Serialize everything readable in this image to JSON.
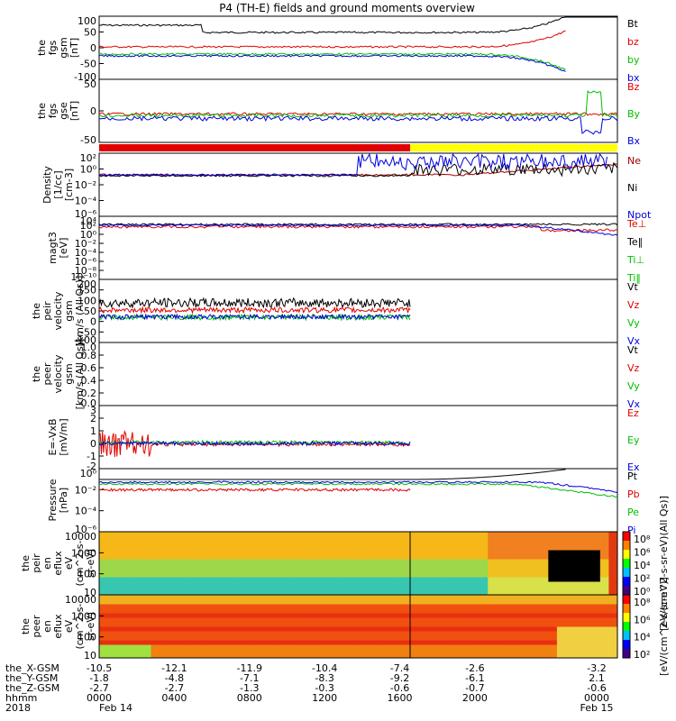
{
  "title": "P4 (TH-E) fields and ground moments overview",
  "colors": {
    "black": "#000000",
    "red": "#e00000",
    "green": "#00c000",
    "blue": "#0000dd",
    "yellow": "#ffff00",
    "darkred": "#a00000"
  },
  "chart_data": [
    {
      "type": "line",
      "panel": "fgs_gsm",
      "ylabel": [
        "the",
        "fgs",
        "gsm",
        "[nT]"
      ],
      "yticks": [
        "100",
        "50",
        "0",
        "-50",
        "-100"
      ],
      "ylim": [
        -100,
        100
      ],
      "series": [
        {
          "name": "Bt",
          "color": "black"
        },
        {
          "name": "bz",
          "color": "red"
        },
        {
          "name": "by",
          "color": "green"
        },
        {
          "name": "bx",
          "color": "blue"
        }
      ]
    },
    {
      "type": "line",
      "panel": "fgs_dsl",
      "ylabel": [
        "the",
        "fgs",
        "gse",
        "[nT]"
      ],
      "yticks": [
        "50",
        "0",
        "-50"
      ],
      "ylim": [
        -80,
        80
      ],
      "series": [
        {
          "name": "Bz",
          "color": "red"
        },
        {
          "name": "By",
          "color": "green"
        },
        {
          "name": "Bx",
          "color": "blue"
        }
      ]
    },
    {
      "type": "bar",
      "panel": "mode_bar",
      "segments": [
        {
          "from": 0,
          "to": 0.6,
          "color": "red"
        },
        {
          "from": 0.6,
          "to": 1,
          "color": "yellow"
        }
      ]
    },
    {
      "type": "line",
      "panel": "density",
      "ylabel": [
        "Density",
        "[1/cc]",
        "[cm-3]"
      ],
      "yticks": [
        "10²",
        "10⁰",
        "10⁻²",
        "10⁻⁴",
        "10⁻⁶"
      ],
      "log": true,
      "series": [
        {
          "name": "Ne",
          "color": "darkred"
        },
        {
          "name": "Ni",
          "color": "black"
        },
        {
          "name": "Npot",
          "color": "blue"
        }
      ]
    },
    {
      "type": "line",
      "panel": "temperature",
      "ylabel": [
        "magt3",
        "[eV]"
      ],
      "yticks": [
        "10⁴",
        "10²",
        "10⁰",
        "10⁻²",
        "10⁻⁴",
        "10⁻⁶",
        "10⁻⁸",
        "10⁻¹⁰"
      ],
      "log": true,
      "series": [
        {
          "name": "Te⊥",
          "color": "red"
        },
        {
          "name": "Te‖",
          "color": "black"
        },
        {
          "name": "Ti⊥",
          "color": "green"
        },
        {
          "name": "Ti‖",
          "color": "green"
        }
      ]
    },
    {
      "type": "line",
      "panel": "peir_velocity",
      "ylabel": [
        "the",
        "peir",
        "velocity",
        "gsm",
        "[km/s (All Qs)]"
      ],
      "yticks": [
        "200",
        "150",
        "100",
        "50",
        "0",
        "-50",
        "-100"
      ],
      "ylim": [
        -100,
        200
      ],
      "series": [
        {
          "name": "Vt",
          "color": "black"
        },
        {
          "name": "Vz",
          "color": "red"
        },
        {
          "name": "Vy",
          "color": "green"
        },
        {
          "name": "Vx",
          "color": "blue"
        }
      ]
    },
    {
      "type": "line",
      "panel": "peer_velocity",
      "ylabel": [
        "the",
        "peer",
        "velocity",
        "gsm",
        "[km/s (All Qs)]"
      ],
      "yticks": [
        "1.0",
        "0.8",
        "0.6",
        "0.4",
        "0.2",
        "0.0"
      ],
      "ylim": [
        0,
        1
      ],
      "series": [
        {
          "name": "Vt",
          "color": "black"
        },
        {
          "name": "Vz",
          "color": "red"
        },
        {
          "name": "Vy",
          "color": "green"
        },
        {
          "name": "Vx",
          "color": "blue"
        }
      ]
    },
    {
      "type": "line",
      "panel": "efield",
      "ylabel": [
        "E=-VxB",
        "[mV/m]"
      ],
      "yticks": [
        "3",
        "2",
        "1",
        "0",
        "-1",
        "-2"
      ],
      "ylim": [
        -2,
        3
      ],
      "series": [
        {
          "name": "Ez",
          "color": "red"
        },
        {
          "name": "Ey",
          "color": "green"
        },
        {
          "name": "Ex",
          "color": "blue"
        }
      ]
    },
    {
      "type": "line",
      "panel": "pressure",
      "ylabel": [
        "Pressure",
        "[nPa]"
      ],
      "yticks": [
        "10⁰",
        "10⁻²",
        "10⁻⁴",
        "10⁻⁶"
      ],
      "log": true,
      "series": [
        {
          "name": "Pt",
          "color": "black"
        },
        {
          "name": "Pb",
          "color": "red"
        },
        {
          "name": "Pe",
          "color": "green"
        },
        {
          "name": "Pi",
          "color": "blue"
        }
      ]
    },
    {
      "type": "heatmap",
      "panel": "peir_en_eflux",
      "ylabel": [
        "the",
        "peir",
        "en",
        "eflux",
        "eV",
        "(cm^2-s-",
        "sr-eV)"
      ],
      "yticks": [
        "10000",
        "1000",
        "100",
        "10"
      ],
      "log": true
    },
    {
      "type": "heatmap",
      "panel": "peer_en_eflux",
      "ylabel": [
        "the",
        "peer",
        "en",
        "eflux",
        "eV",
        "(cm^2-s-",
        "sr-eV)"
      ],
      "yticks": [
        "10000",
        "1000",
        "100",
        "10"
      ],
      "log": true
    }
  ],
  "colorbar": {
    "ticks": [
      "10⁸",
      "10⁶",
      "10⁴",
      "10²",
      "10⁰"
    ],
    "label": "[eV/(cm^2-s-sr-eV)(All Qs)]"
  },
  "colorbar2": {
    "ticks": [
      "10⁸",
      "10⁶",
      "10⁴",
      "10²"
    ],
    "label": "[eV/(cm^2-s-sr-eV)]"
  },
  "ephem": {
    "labels": [
      "the_X-GSM",
      "the_Y-GSM",
      "the_Z-GSM",
      "hhmm",
      "2018"
    ],
    "x_gsm": [
      "-10.5",
      "-12.1",
      "-11.9",
      "-10.4",
      "-7.4",
      "-2.6",
      "-3.2"
    ],
    "y_gsm": [
      "-1.8",
      "-4.8",
      "-7.1",
      "-8.3",
      "-9.2",
      "-6.1",
      "2.1"
    ],
    "z_gsm": [
      "-2.7",
      "-2.7",
      "-1.3",
      "-0.3",
      "-0.6",
      "-0.7",
      "-0.6"
    ],
    "hhmm": [
      "0000",
      "0400",
      "0800",
      "1200",
      "1600",
      "2000",
      "0000"
    ],
    "date_start": "Feb 14",
    "date_end": "Feb 15"
  }
}
